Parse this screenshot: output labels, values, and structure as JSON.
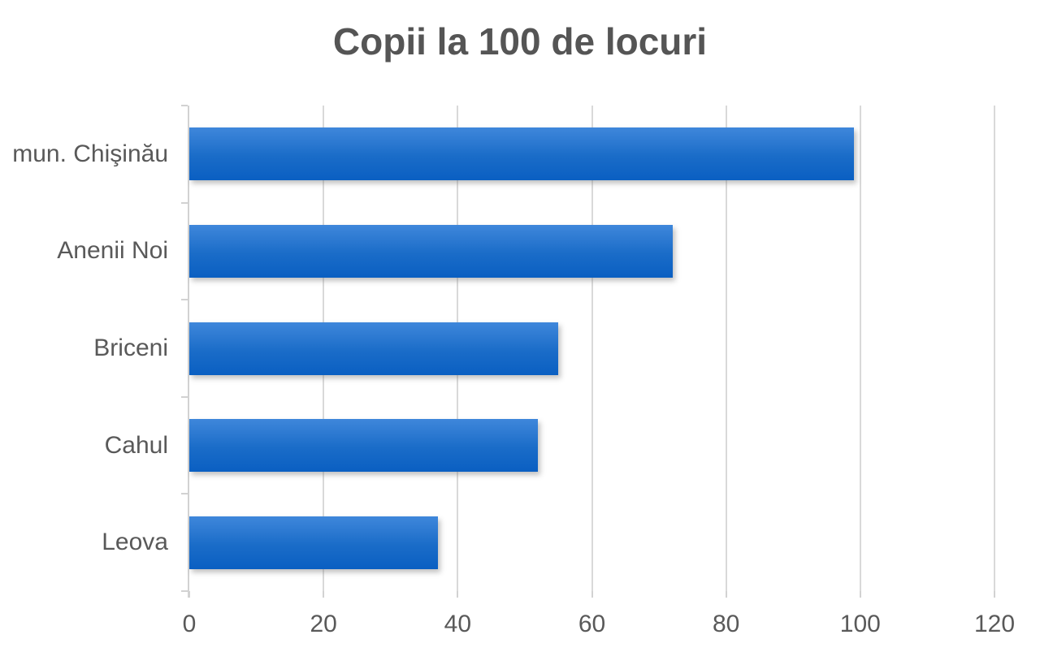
{
  "chart_data": {
    "type": "bar",
    "orientation": "horizontal",
    "title": "Copii la 100 de locuri",
    "categories": [
      "mun. Chişinău",
      "Anenii Noi",
      "Briceni",
      "Cahul",
      "Leova"
    ],
    "values": [
      99,
      72,
      55,
      52,
      37
    ],
    "xlabel": "",
    "ylabel": "",
    "xlim": [
      0,
      120
    ],
    "xticks": [
      0,
      20,
      40,
      60,
      80,
      100,
      120
    ],
    "grid": true,
    "legend": false,
    "colors": {
      "bar_gradient_top": "#3f87db",
      "bar_gradient_mid": "#1a6cc8",
      "bar_gradient_bottom": "#0a5fc2",
      "gridline": "#d9d9d9",
      "axis_line": "#d2d2d2",
      "tick_mark": "#d2d2d2",
      "label_text": "#595959",
      "title_text": "#555555",
      "background": "#ffffff"
    }
  }
}
